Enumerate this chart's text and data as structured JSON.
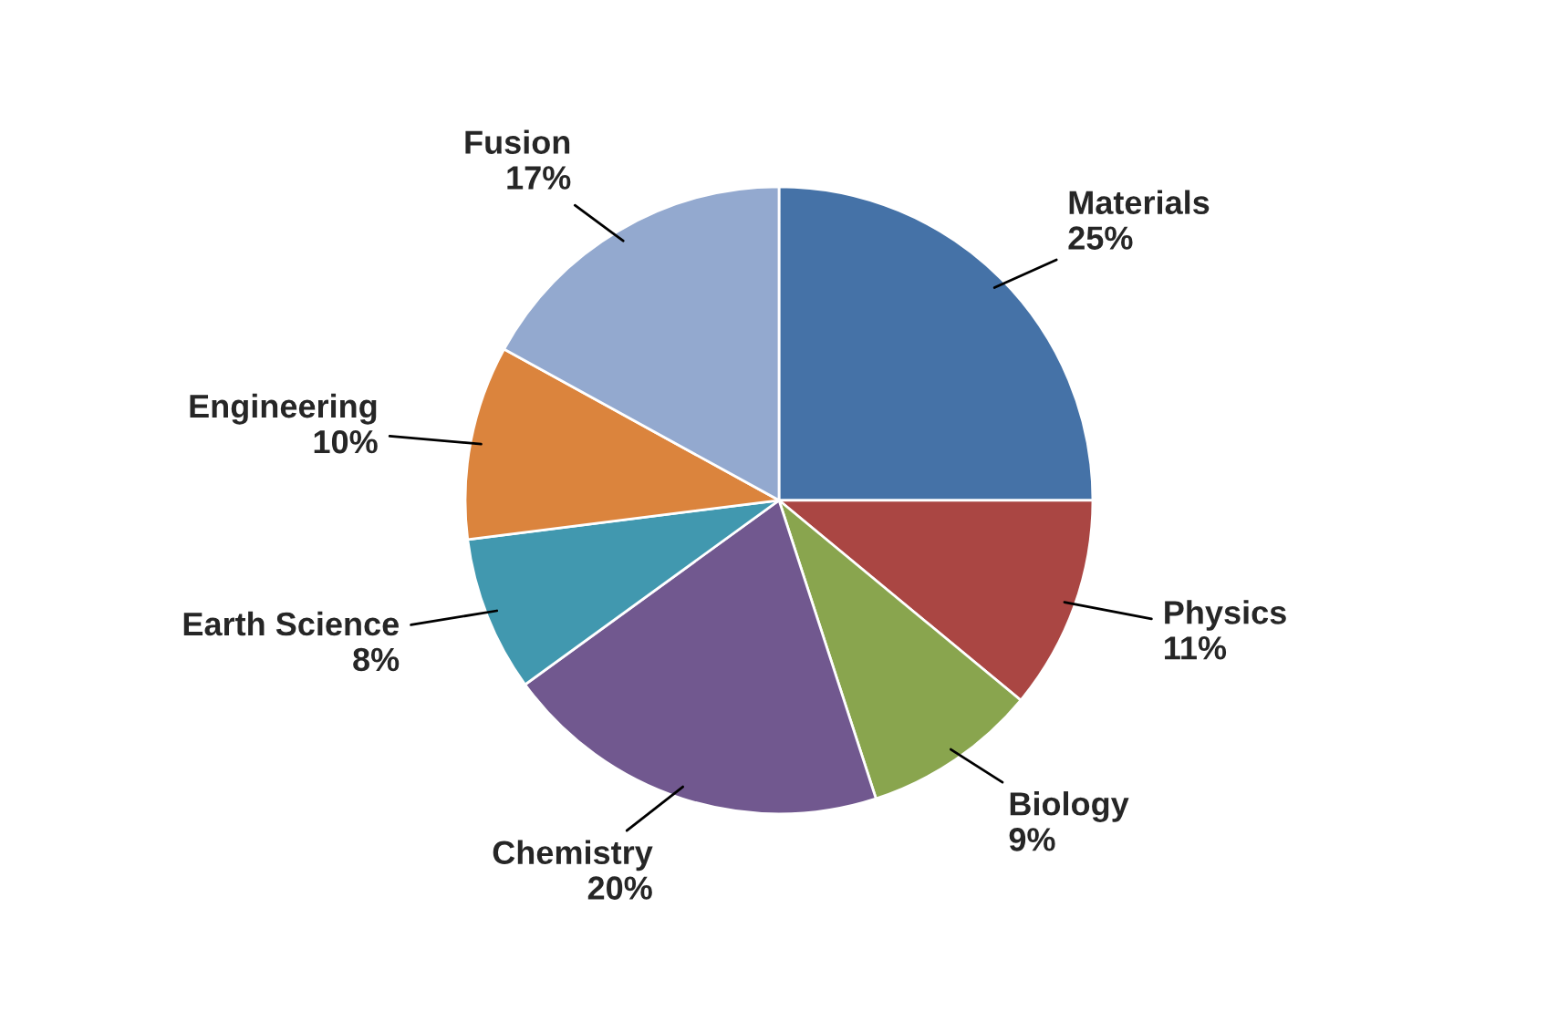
{
  "chart_data": {
    "type": "pie",
    "categories": [
      "Materials",
      "Physics",
      "Biology",
      "Chemistry",
      "Earth Science",
      "Engineering",
      "Fusion"
    ],
    "values": [
      25,
      11,
      9,
      20,
      8,
      10,
      17
    ],
    "value_labels": [
      "25%",
      "11%",
      "9%",
      "20%",
      "8%",
      "10%",
      "17%"
    ],
    "colors": [
      "#4572a7",
      "#aa4643",
      "#89a54e",
      "#71588f",
      "#4198af",
      "#db843d",
      "#93a9cf"
    ],
    "legend": false
  }
}
